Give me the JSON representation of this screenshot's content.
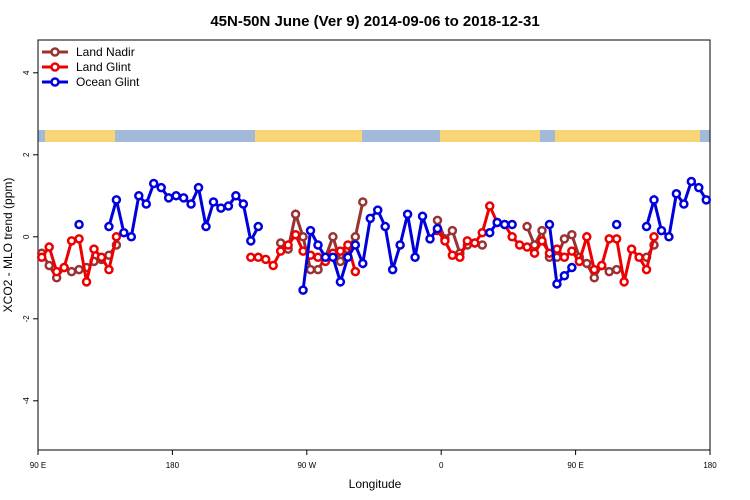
{
  "chart_data": {
    "type": "line",
    "title": "45N-50N June (Ver 9)   2014-09-06 to 2018-12-31",
    "x_label": "Longitude",
    "y_label": "XCO2 - MLO trend (ppm)",
    "xlim": [
      90,
      540
    ],
    "xticks": [
      {
        "value": 90,
        "label": "90 E"
      },
      {
        "value": 180,
        "label": "180"
      },
      {
        "value": 270,
        "label": "90 W"
      },
      {
        "value": 360,
        "label": "0"
      },
      {
        "value": 450,
        "label": "90 E"
      },
      {
        "value": 540,
        "label": "180"
      }
    ],
    "ylim": [
      -5.2,
      4.8
    ],
    "yticks": [
      -4,
      -2,
      0,
      2,
      4
    ],
    "legend": "top-left",
    "x": [
      92.5,
      97.5,
      102.5,
      107.5,
      112.5,
      117.5,
      122.5,
      127.5,
      132.5,
      137.5,
      142.5,
      147.5,
      152.5,
      157.5,
      162.5,
      167.5,
      172.5,
      177.5,
      182.5,
      187.5,
      192.5,
      197.5,
      202.5,
      207.5,
      212.5,
      217.5,
      222.5,
      227.5,
      232.5,
      237.5,
      242.5,
      247.5,
      252.5,
      257.5,
      262.5,
      267.5,
      272.5,
      277.5,
      282.5,
      287.5,
      292.5,
      297.5,
      302.5,
      307.5,
      312.5,
      317.5,
      322.5,
      327.5,
      332.5,
      337.5,
      342.5,
      347.5,
      352.5,
      357.5,
      362.5,
      367.5,
      372.5,
      377.5,
      382.5,
      387.5,
      392.5,
      397.5,
      402.5,
      407.5,
      412.5,
      417.5,
      422.5,
      427.5,
      432.5,
      437.5,
      442.5,
      447.5,
      452.5,
      457.5,
      462.5,
      467.5,
      472.5,
      477.5,
      482.5,
      487.5,
      492.5,
      497.5,
      502.5,
      507.5,
      512.5,
      517.5,
      522.5,
      527.5,
      532.5,
      537.5
    ],
    "series": [
      {
        "name": "Land Nadir",
        "color": "#993333",
        "values": [
          -0.4,
          -0.7,
          -1.0,
          -0.75,
          -0.85,
          -0.8,
          -0.75,
          -0.6,
          -0.55,
          -0.45,
          -0.2,
          null,
          null,
          null,
          null,
          null,
          null,
          null,
          null,
          null,
          null,
          null,
          null,
          null,
          null,
          null,
          null,
          null,
          null,
          null,
          null,
          null,
          -0.15,
          -0.3,
          0.55,
          0.0,
          -0.8,
          -0.8,
          -0.5,
          0.0,
          -0.6,
          -0.3,
          0.0,
          0.85,
          null,
          null,
          null,
          null,
          null,
          null,
          null,
          null,
          null,
          0.4,
          -0.05,
          0.15,
          -0.4,
          -0.2,
          -0.15,
          -0.2,
          null,
          null,
          null,
          null,
          null,
          0.25,
          -0.2,
          0.15,
          -0.5,
          -0.5,
          -0.05,
          0.05,
          -0.5,
          -0.65,
          -1.0,
          -0.7,
          -0.85,
          -0.8,
          null,
          null,
          null,
          -0.5,
          -0.2,
          null,
          null,
          null,
          null,
          null,
          null,
          null
        ]
      },
      {
        "name": "Land Glint",
        "color": "#ee0000",
        "values": [
          -0.5,
          -0.25,
          -0.85,
          -0.75,
          -0.1,
          -0.05,
          -1.1,
          -0.3,
          -0.5,
          -0.8,
          0.0,
          null,
          null,
          null,
          null,
          null,
          null,
          null,
          null,
          null,
          null,
          null,
          null,
          null,
          null,
          null,
          null,
          null,
          -0.5,
          -0.5,
          -0.55,
          -0.7,
          -0.35,
          -0.2,
          0.05,
          -0.35,
          -0.45,
          -0.5,
          -0.6,
          -0.4,
          -0.35,
          -0.2,
          -0.85,
          null,
          null,
          null,
          null,
          null,
          null,
          null,
          null,
          null,
          null,
          0.15,
          -0.1,
          -0.45,
          -0.5,
          -0.1,
          -0.15,
          0.1,
          0.75,
          0.35,
          0.3,
          0.0,
          -0.2,
          -0.25,
          -0.4,
          -0.1,
          -0.4,
          -0.3,
          -0.5,
          -0.35,
          -0.6,
          0.0,
          -0.8,
          -0.7,
          -0.05,
          -0.05,
          -1.1,
          -0.3,
          -0.5,
          -0.8,
          0.0,
          null,
          null,
          null,
          null,
          null,
          null,
          null
        ]
      },
      {
        "name": "Ocean Glint",
        "color": "#0000dd",
        "values": [
          null,
          null,
          null,
          null,
          null,
          0.3,
          null,
          null,
          null,
          0.25,
          0.9,
          0.1,
          0.0,
          1.0,
          0.8,
          1.3,
          1.2,
          0.95,
          1.0,
          0.95,
          0.8,
          1.2,
          0.25,
          0.85,
          0.7,
          0.75,
          1.0,
          0.8,
          -0.1,
          0.25,
          null,
          null,
          null,
          null,
          null,
          -1.3,
          0.15,
          -0.2,
          -0.5,
          -0.5,
          -1.1,
          -0.5,
          -0.2,
          -0.65,
          0.45,
          0.65,
          0.25,
          -0.8,
          -0.2,
          0.55,
          -0.5,
          0.5,
          -0.05,
          0.2,
          null,
          null,
          null,
          null,
          null,
          null,
          0.1,
          0.35,
          0.3,
          0.3,
          null,
          null,
          null,
          null,
          0.3,
          -1.15,
          -0.95,
          -0.75,
          null,
          null,
          null,
          null,
          null,
          0.3,
          null,
          null,
          null,
          0.25,
          0.9,
          0.15,
          0.0,
          1.05,
          0.8,
          1.35,
          1.2,
          0.9
        ]
      }
    ]
  }
}
